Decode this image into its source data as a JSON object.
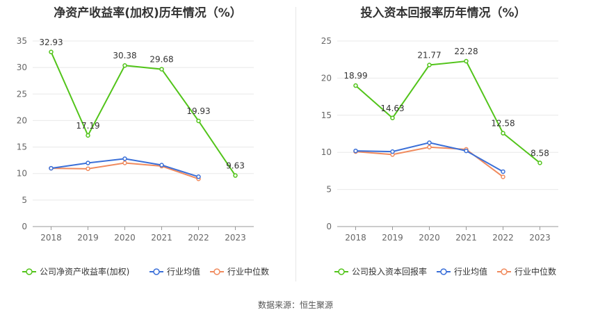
{
  "source_label": "数据来源：恒生聚源",
  "chart_data": [
    {
      "type": "line",
      "title": "净资产收益率(加权)历年情况（%）",
      "categories": [
        "2018",
        "2019",
        "2020",
        "2021",
        "2022",
        "2023"
      ],
      "ylim": [
        0,
        35
      ],
      "yticks": [
        0,
        5,
        10,
        15,
        20,
        25,
        30,
        35
      ],
      "grid": true,
      "legend_position": "bottom",
      "series": [
        {
          "name": "公司净资产收益率(加权)",
          "color": "#52c41a",
          "values": [
            32.93,
            17.19,
            30.38,
            29.68,
            19.93,
            9.63
          ],
          "labels": true
        },
        {
          "name": "行业均值",
          "color": "#3a6fd8",
          "values": [
            11.0,
            12.0,
            12.8,
            11.6,
            9.4,
            null
          ],
          "labels": false
        },
        {
          "name": "行业中位数",
          "color": "#f08a5d",
          "values": [
            11.0,
            10.9,
            12.0,
            11.4,
            9.0,
            null
          ],
          "labels": false
        }
      ]
    },
    {
      "type": "line",
      "title": "投入资本回报率历年情况（%）",
      "categories": [
        "2018",
        "2019",
        "2020",
        "2021",
        "2022",
        "2023"
      ],
      "ylim": [
        0,
        25
      ],
      "yticks": [
        0,
        5,
        10,
        15,
        20,
        25
      ],
      "grid": true,
      "legend_position": "bottom",
      "series": [
        {
          "name": "公司投入资本回报率",
          "color": "#52c41a",
          "values": [
            18.99,
            14.63,
            21.77,
            22.28,
            12.58,
            8.58
          ],
          "labels": true
        },
        {
          "name": "行业均值",
          "color": "#3a6fd8",
          "values": [
            10.2,
            10.1,
            11.3,
            10.2,
            7.4,
            null
          ],
          "labels": false
        },
        {
          "name": "行业中位数",
          "color": "#f08a5d",
          "values": [
            10.1,
            9.7,
            10.7,
            10.4,
            6.7,
            null
          ],
          "labels": false
        }
      ]
    }
  ]
}
